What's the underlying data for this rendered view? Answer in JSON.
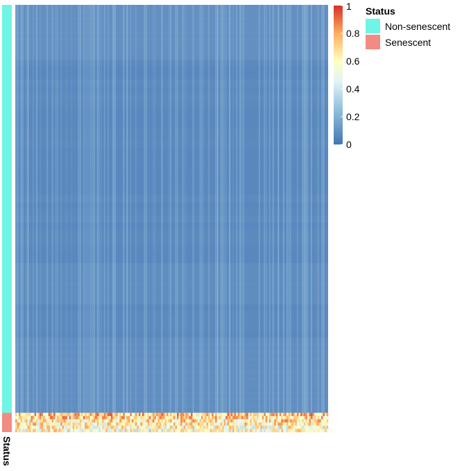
{
  "chart_data": {
    "type": "heatmap",
    "title": "",
    "xlabel": "",
    "ylabel": "",
    "value_range": [
      0,
      1
    ],
    "n_columns": 180,
    "row_groups": [
      {
        "name": "Non-senescent",
        "color": "#6EF5E6",
        "row_fraction": 0.955,
        "typical_value": 0.05
      },
      {
        "name": "Senescent",
        "color": "#F28B82",
        "row_fraction": 0.045,
        "typical_value": 0.72
      }
    ],
    "colorbar": {
      "ticks": [
        {
          "value": 0,
          "label": "0"
        },
        {
          "value": 0.2,
          "label": "0.2"
        },
        {
          "value": 0.4,
          "label": "0.4"
        },
        {
          "value": 0.6,
          "label": "0.6"
        },
        {
          "value": 0.8,
          "label": "0.8"
        },
        {
          "value": 1,
          "label": "1"
        }
      ],
      "stops": [
        "#4575B4",
        "#E0F3F8",
        "#FFFFBF",
        "#FDAE61",
        "#D73027"
      ]
    },
    "annotation": {
      "axis_label": "Status",
      "legend_title": "Status",
      "legend_placement": "right"
    }
  }
}
